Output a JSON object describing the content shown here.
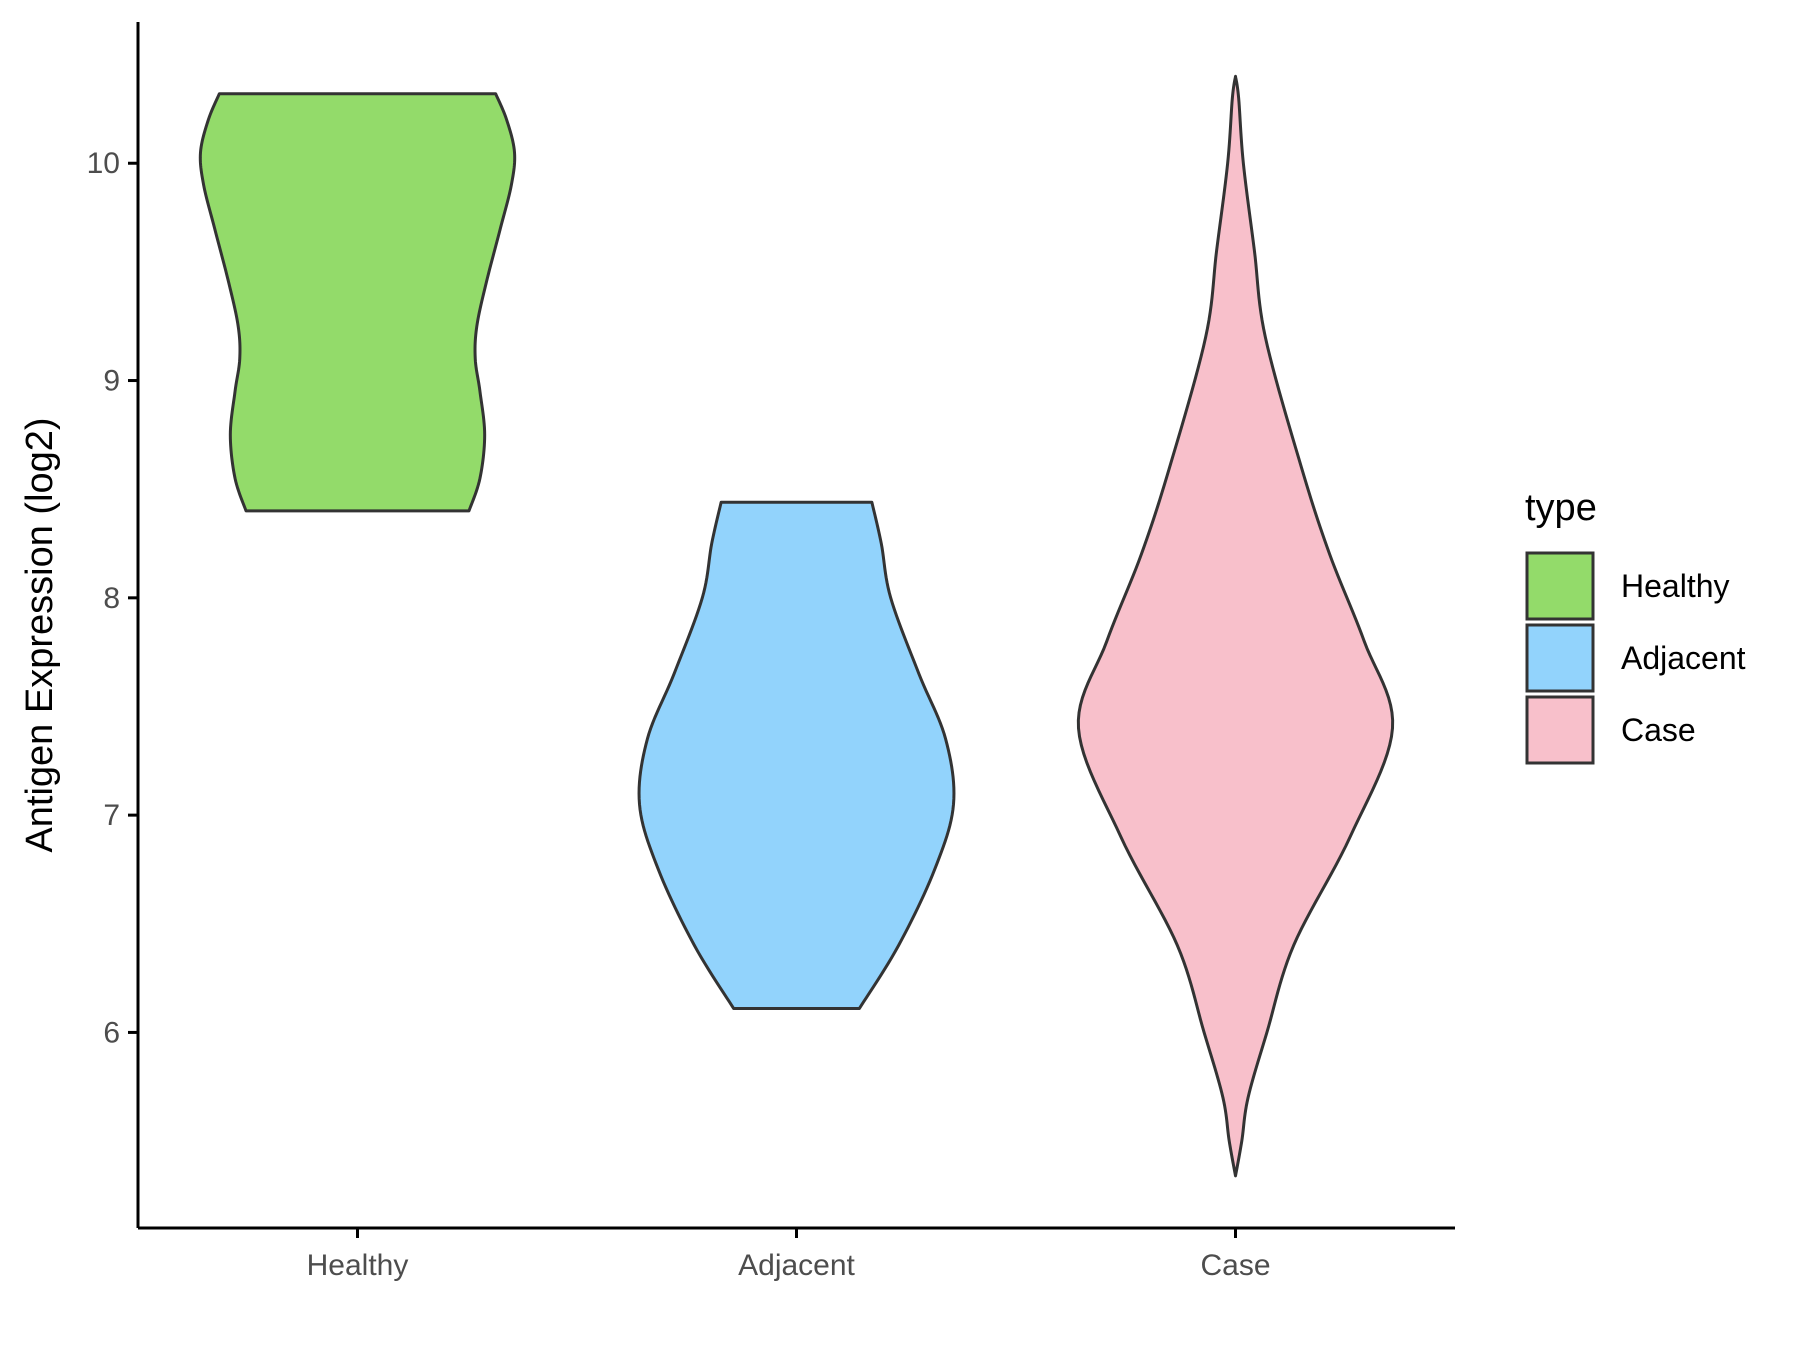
{
  "chart_data": {
    "type": "violin",
    "title": "",
    "xlabel": "",
    "ylabel": "Antigen Expression (log2)",
    "ylim": [
      5.1,
      10.65
    ],
    "yticks": [
      6,
      7,
      8,
      9,
      10
    ],
    "grid": false,
    "legend": {
      "title": "type",
      "position": "right",
      "entries": [
        "Healthy",
        "Adjacent",
        "Case"
      ]
    },
    "categories": [
      "Healthy",
      "Adjacent",
      "Case"
    ],
    "series": [
      {
        "name": "Healthy",
        "color": "#93DB6A",
        "min": 8.4,
        "max": 10.32,
        "density_profile": [
          [
            8.4,
            0.71
          ],
          [
            8.55,
            0.78
          ],
          [
            8.75,
            0.81
          ],
          [
            8.95,
            0.78
          ],
          [
            9.1,
            0.75
          ],
          [
            9.25,
            0.76
          ],
          [
            9.45,
            0.82
          ],
          [
            9.7,
            0.91
          ],
          [
            9.9,
            0.98
          ],
          [
            10.05,
            1.0
          ],
          [
            10.2,
            0.95
          ],
          [
            10.32,
            0.88
          ]
        ]
      },
      {
        "name": "Adjacent",
        "color": "#92D3FC",
        "min": 6.11,
        "max": 8.44,
        "density_profile": [
          [
            6.11,
            0.4
          ],
          [
            6.4,
            0.65
          ],
          [
            6.75,
            0.88
          ],
          [
            7.05,
            1.0
          ],
          [
            7.35,
            0.95
          ],
          [
            7.65,
            0.78
          ],
          [
            8.0,
            0.6
          ],
          [
            8.25,
            0.54
          ],
          [
            8.44,
            0.48
          ]
        ]
      },
      {
        "name": "Case",
        "color": "#F8C0CB",
        "min": 5.34,
        "max": 10.4,
        "density_profile": [
          [
            5.34,
            0.0
          ],
          [
            5.5,
            0.04
          ],
          [
            5.7,
            0.08
          ],
          [
            6.0,
            0.2
          ],
          [
            6.4,
            0.37
          ],
          [
            6.9,
            0.73
          ],
          [
            7.4,
            1.0
          ],
          [
            7.8,
            0.82
          ],
          [
            8.2,
            0.6
          ],
          [
            8.6,
            0.42
          ],
          [
            9.2,
            0.19
          ],
          [
            9.6,
            0.12
          ],
          [
            10.0,
            0.05
          ],
          [
            10.3,
            0.02
          ],
          [
            10.4,
            0.0
          ]
        ]
      }
    ]
  }
}
